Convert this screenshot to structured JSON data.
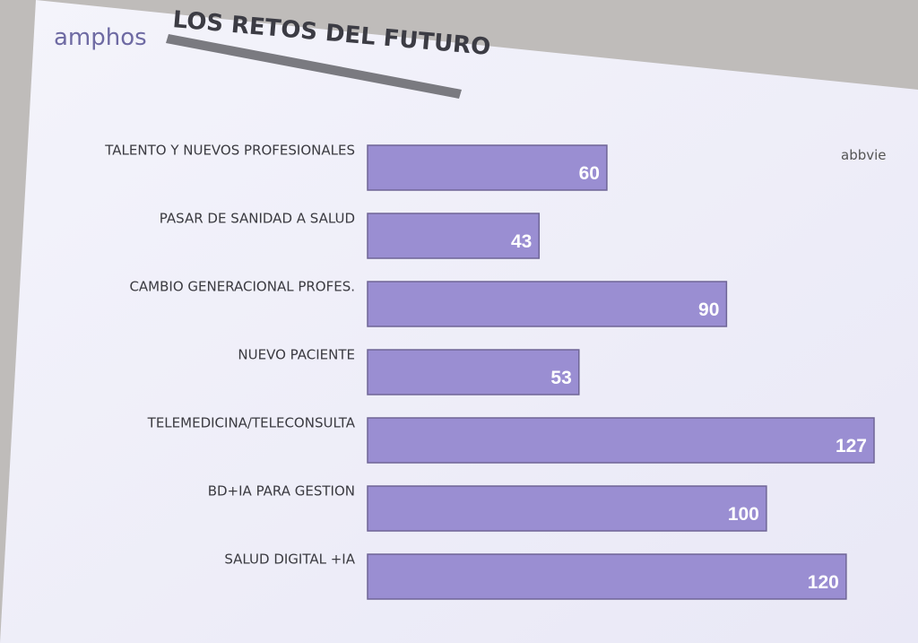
{
  "header": {
    "brand": "amphos",
    "sponsor": "abbvie"
  },
  "chart_data": {
    "type": "bar",
    "orientation": "horizontal",
    "title": "LOS RETOS DEL FUTURO",
    "categories": [
      "TALENTO Y NUEVOS PROFESIONALES",
      "PASAR DE SANIDAD A SALUD",
      "CAMBIO GENERACIONAL PROFES.",
      "NUEVO PACIENTE",
      "TELEMEDICINA/TELECONSULTA",
      "BD+IA PARA GESTION",
      "SALUD DIGITAL +IA"
    ],
    "values": [
      60,
      43,
      90,
      53,
      127,
      100,
      120
    ],
    "color": "#9a8ed2"
  }
}
